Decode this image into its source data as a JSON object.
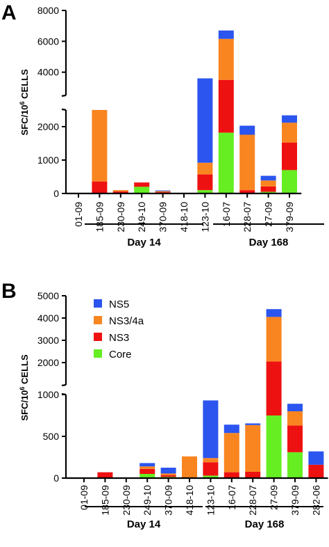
{
  "chart_data": [
    {
      "type": "bar",
      "stacked": true,
      "panel": "A",
      "ylabel": "SFC/10^6 CELLS",
      "ylabel_parts": {
        "base": "SFC/10",
        "exp": "6",
        "rest": " CELLS"
      },
      "y_axis_break": true,
      "ylim_lower": [
        0,
        2500
      ],
      "ylim_upper": [
        2500,
        8000
      ],
      "yticks_lower": [
        0,
        1000,
        2000
      ],
      "yticks_upper": [
        4000,
        6000,
        8000
      ],
      "categories": [
        "01-09",
        "185-09",
        "230-09",
        "249-10",
        "370-09",
        "418-10",
        "123-10",
        "16-07",
        "228-07",
        "27-09",
        "379-09"
      ],
      "series": [
        {
          "name": "Core",
          "color": "#66ee22",
          "values": [
            0,
            0,
            0,
            200,
            0,
            0,
            100,
            1820,
            0,
            50,
            700
          ]
        },
        {
          "name": "NS3",
          "color": "#ee1111",
          "values": [
            0,
            360,
            60,
            130,
            40,
            0,
            470,
            1680,
            100,
            160,
            820
          ]
        },
        {
          "name": "NS3/4a",
          "color": "#f98520",
          "values": [
            0,
            2140,
            40,
            0,
            30,
            0,
            350,
            2660,
            1660,
            180,
            600
          ]
        },
        {
          "name": "NS5",
          "color": "#2b55ee",
          "values": [
            20,
            0,
            0,
            0,
            20,
            0,
            2680,
            540,
            270,
            140,
            220
          ]
        }
      ],
      "groups": [
        {
          "label": "Day 14",
          "categories": [
            "01-09",
            "185-09",
            "230-09",
            "249-10",
            "370-09",
            "418-10"
          ]
        },
        {
          "label": "Day 168",
          "categories": [
            "123-10",
            "16-07",
            "228-07",
            "27-09",
            "379-09"
          ]
        }
      ]
    },
    {
      "type": "bar",
      "stacked": true,
      "panel": "B",
      "ylabel": "SFC/10^6 CELLS",
      "ylabel_parts": {
        "base": "SFC/10",
        "exp": "6",
        "rest": " CELLS"
      },
      "y_axis_break": true,
      "ylim_lower": [
        0,
        1000
      ],
      "ylim_upper": [
        1000,
        5000
      ],
      "yticks_lower": [
        0,
        500,
        1000
      ],
      "yticks_upper": [
        2000,
        3000,
        4000,
        5000
      ],
      "categories": [
        "01-09",
        "185-09",
        "230-09",
        "249-10",
        "370-09",
        "418-10",
        "123-10",
        "16-07",
        "228-07",
        "27-09",
        "379-09",
        "282-06"
      ],
      "series": [
        {
          "name": "Core",
          "color": "#66ee22",
          "values": [
            0,
            0,
            0,
            50,
            15,
            0,
            30,
            0,
            0,
            750,
            310,
            0
          ]
        },
        {
          "name": "NS3",
          "color": "#ee1111",
          "values": [
            0,
            70,
            0,
            60,
            20,
            0,
            160,
            70,
            75,
            1300,
            320,
            160
          ]
        },
        {
          "name": "NS3/4a",
          "color": "#f98520",
          "values": [
            0,
            0,
            0,
            30,
            20,
            260,
            50,
            470,
            560,
            2000,
            170,
            0
          ]
        },
        {
          "name": "NS5",
          "color": "#2b55ee",
          "values": [
            0,
            0,
            0,
            40,
            70,
            0,
            690,
            100,
            20,
            350,
            90,
            160
          ]
        }
      ],
      "legend": [
        {
          "label": "NS5",
          "color": "#2b55ee"
        },
        {
          "label": "NS3/4a",
          "color": "#f98520"
        },
        {
          "label": "NS3",
          "color": "#ee1111"
        },
        {
          "label": "Core",
          "color": "#66ee22"
        }
      ],
      "groups": [
        {
          "label": "Day 14",
          "categories": [
            "01-09",
            "185-09",
            "230-09",
            "249-10",
            "370-09",
            "418-10"
          ]
        },
        {
          "label": "Day 168",
          "categories": [
            "123-10",
            "16-07",
            "228-07",
            "27-09",
            "379-09",
            "282-06"
          ]
        }
      ]
    }
  ]
}
